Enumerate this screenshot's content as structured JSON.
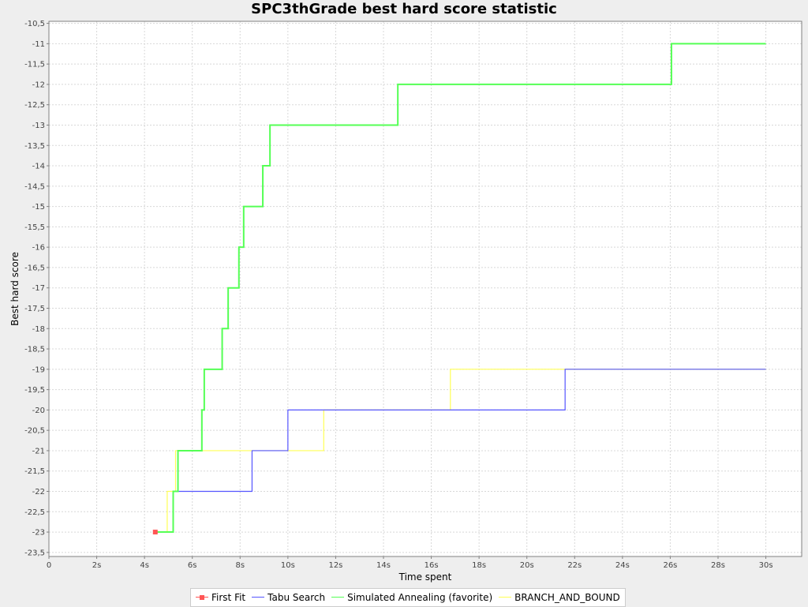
{
  "chart_data": {
    "type": "line",
    "title": "SPC3thGrade best hard score statistic",
    "xlabel": "Time spent",
    "ylabel": "Best hard score",
    "xlim": [
      0,
      31.5
    ],
    "ylim": [
      -23.6,
      -10.45
    ],
    "x_ticks": [
      {
        "value": 0,
        "label": "0"
      },
      {
        "value": 2,
        "label": "2s"
      },
      {
        "value": 4,
        "label": "4s"
      },
      {
        "value": 6,
        "label": "6s"
      },
      {
        "value": 8,
        "label": "8s"
      },
      {
        "value": 10,
        "label": "10s"
      },
      {
        "value": 12,
        "label": "12s"
      },
      {
        "value": 14,
        "label": "14s"
      },
      {
        "value": 16,
        "label": "16s"
      },
      {
        "value": 18,
        "label": "18s"
      },
      {
        "value": 20,
        "label": "20s"
      },
      {
        "value": 22,
        "label": "22s"
      },
      {
        "value": 24,
        "label": "24s"
      },
      {
        "value": 26,
        "label": "26s"
      },
      {
        "value": 28,
        "label": "28s"
      },
      {
        "value": 30,
        "label": "30s"
      }
    ],
    "y_ticks": [
      {
        "value": -10.5,
        "label": "-10,5"
      },
      {
        "value": -11,
        "label": "-11"
      },
      {
        "value": -11.5,
        "label": "-11,5"
      },
      {
        "value": -12,
        "label": "-12"
      },
      {
        "value": -12.5,
        "label": "-12,5"
      },
      {
        "value": -13,
        "label": "-13"
      },
      {
        "value": -13.5,
        "label": "-13,5"
      },
      {
        "value": -14,
        "label": "-14"
      },
      {
        "value": -14.5,
        "label": "-14,5"
      },
      {
        "value": -15,
        "label": "-15"
      },
      {
        "value": -15.5,
        "label": "-15,5"
      },
      {
        "value": -16,
        "label": "-16"
      },
      {
        "value": -16.5,
        "label": "-16,5"
      },
      {
        "value": -17,
        "label": "-17"
      },
      {
        "value": -17.5,
        "label": "-17,5"
      },
      {
        "value": -18,
        "label": "-18"
      },
      {
        "value": -18.5,
        "label": "-18,5"
      },
      {
        "value": -19,
        "label": "-19"
      },
      {
        "value": -19.5,
        "label": "-19,5"
      },
      {
        "value": -20,
        "label": "-20"
      },
      {
        "value": -20.5,
        "label": "-20,5"
      },
      {
        "value": -21,
        "label": "-21"
      },
      {
        "value": -21.5,
        "label": "-21,5"
      },
      {
        "value": -22,
        "label": "-22"
      },
      {
        "value": -22.5,
        "label": "-22,5"
      },
      {
        "value": -23,
        "label": "-23"
      },
      {
        "value": -23.5,
        "label": "-23,5"
      }
    ],
    "grid": true,
    "legend_position": "bottom",
    "step": true,
    "series": [
      {
        "name": "First Fit",
        "color": "#ff5555",
        "marker": "square",
        "line": false,
        "points": [
          [
            4.45,
            -23
          ]
        ]
      },
      {
        "name": "Tabu Search",
        "color": "#5555ff",
        "marker": "none",
        "line": true,
        "points": [
          [
            4.5,
            -23
          ],
          [
            5.2,
            -22
          ],
          [
            8.5,
            -21
          ],
          [
            10,
            -20
          ],
          [
            21.6,
            -19
          ],
          [
            30,
            -19
          ]
        ]
      },
      {
        "name": "Simulated Annealing (favorite)",
        "color": "#55ff55",
        "marker": "none",
        "line": true,
        "points": [
          [
            4.5,
            -23
          ],
          [
            5.2,
            -22
          ],
          [
            5.4,
            -21
          ],
          [
            6.4,
            -20
          ],
          [
            6.5,
            -19
          ],
          [
            7.25,
            -18
          ],
          [
            7.5,
            -17
          ],
          [
            7.95,
            -16
          ],
          [
            8.15,
            -15
          ],
          [
            8.95,
            -14
          ],
          [
            9.25,
            -13
          ],
          [
            14.6,
            -12
          ],
          [
            26.05,
            -11
          ],
          [
            30,
            -11
          ]
        ]
      },
      {
        "name": "BRANCH_AND_BOUND",
        "color": "#ffff55",
        "marker": "none",
        "line": true,
        "points": [
          [
            4.5,
            -23
          ],
          [
            4.95,
            -22
          ],
          [
            5.3,
            -21
          ],
          [
            11.5,
            -20
          ],
          [
            16.8,
            -19
          ],
          [
            30,
            -19
          ]
        ]
      }
    ]
  }
}
